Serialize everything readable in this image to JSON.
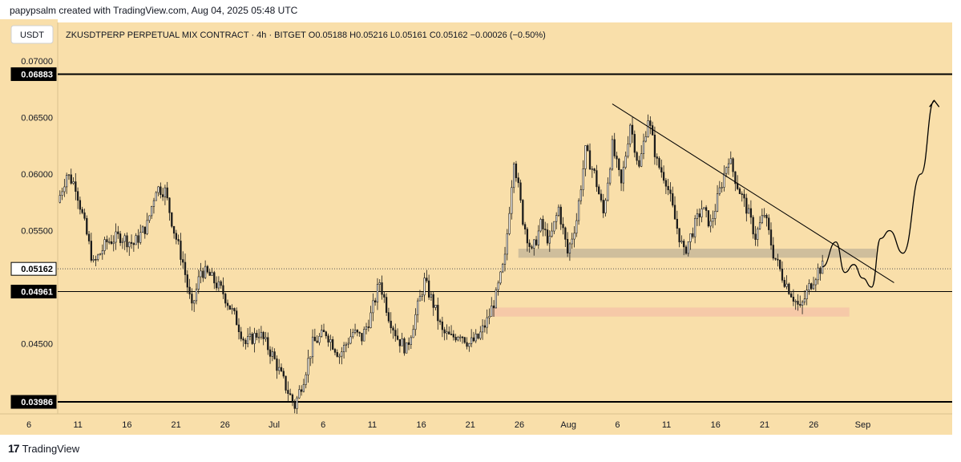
{
  "header": {
    "created_text": "papypsalm created with TradingView.com, Aug 04, 2025 05:48 UTC"
  },
  "footer": {
    "brand": "TradingView",
    "logo_glyph": "17"
  },
  "colors": {
    "chart_bg": "#f9dfaa",
    "candle": "#1a1a1a",
    "grey_zone": "#c8b89a",
    "pink_zone": "#f6c6a8",
    "line": "#000000"
  },
  "chart_data": {
    "type": "candlestick",
    "currency_box": "USDT",
    "legend_text": "ZKUSDTPERP PERPETUAL MIX CONTRACT · 4h · BITGET  O0.05188  H0.05216  L0.05161  C0.05162  −0.00026 (−0.50%)",
    "ylim": [
      0.0388,
      0.0734
    ],
    "y_ticks": [
      "0.07000",
      "0.06500",
      "0.06000",
      "0.05500",
      "0.04500"
    ],
    "x_ticks": [
      "6",
      "11",
      "16",
      "21",
      "26",
      "Jul",
      "6",
      "11",
      "16",
      "21",
      "26",
      "Aug",
      "6",
      "11",
      "16",
      "21",
      "26",
      "Sep"
    ],
    "horizontal_levels": [
      {
        "label": "0.06883",
        "value": 0.06883,
        "style": "thick"
      },
      {
        "label": "0.05162",
        "value": 0.05162,
        "style": "dotted"
      },
      {
        "label": "0.04961",
        "value": 0.04961,
        "style": "thin"
      },
      {
        "label": "0.03986",
        "value": 0.03986,
        "style": "thick"
      }
    ],
    "price_path": [
      [
        0,
        0.0575
      ],
      [
        2,
        0.06
      ],
      [
        4,
        0.059
      ],
      [
        6,
        0.0555
      ],
      [
        8,
        0.052
      ],
      [
        11,
        0.054
      ],
      [
        14,
        0.0545
      ],
      [
        17,
        0.0538
      ],
      [
        20,
        0.0555
      ],
      [
        22,
        0.0588
      ],
      [
        24,
        0.0585
      ],
      [
        26,
        0.055
      ],
      [
        28,
        0.0522
      ],
      [
        30,
        0.048
      ],
      [
        32,
        0.0515
      ],
      [
        34,
        0.051
      ],
      [
        37,
        0.0495
      ],
      [
        40,
        0.047
      ],
      [
        42,
        0.045
      ],
      [
        45,
        0.046
      ],
      [
        48,
        0.044
      ],
      [
        51,
        0.0412
      ],
      [
        53,
        0.0395
      ],
      [
        55,
        0.042
      ],
      [
        57,
        0.045
      ],
      [
        60,
        0.046
      ],
      [
        63,
        0.044
      ],
      [
        66,
        0.046
      ],
      [
        68,
        0.0455
      ],
      [
        70,
        0.0475
      ],
      [
        72,
        0.0505
      ],
      [
        74,
        0.0475
      ],
      [
        76,
        0.0455
      ],
      [
        78,
        0.0445
      ],
      [
        80,
        0.0475
      ],
      [
        82,
        0.0505
      ],
      [
        84,
        0.0485
      ],
      [
        86,
        0.046
      ],
      [
        88,
        0.0455
      ],
      [
        90,
        0.046
      ],
      [
        92,
        0.045
      ],
      [
        94,
        0.0455
      ],
      [
        96,
        0.047
      ],
      [
        98,
        0.0492
      ],
      [
        100,
        0.0525
      ],
      [
        102,
        0.0615
      ],
      [
        104,
        0.056
      ],
      [
        106,
        0.053
      ],
      [
        108,
        0.0555
      ],
      [
        110,
        0.054
      ],
      [
        112,
        0.057
      ],
      [
        114,
        0.053
      ],
      [
        116,
        0.056
      ],
      [
        118,
        0.062
      ],
      [
        120,
        0.06
      ],
      [
        122,
        0.0565
      ],
      [
        124,
        0.0625
      ],
      [
        126,
        0.059
      ],
      [
        128,
        0.0645
      ],
      [
        130,
        0.0605
      ],
      [
        132,
        0.065
      ],
      [
        134,
        0.061
      ],
      [
        136,
        0.0595
      ],
      [
        138,
        0.056
      ],
      [
        140,
        0.053
      ],
      [
        142,
        0.055
      ],
      [
        144,
        0.057
      ],
      [
        146,
        0.0555
      ],
      [
        148,
        0.0585
      ],
      [
        150,
        0.0615
      ],
      [
        152,
        0.059
      ],
      [
        154,
        0.057
      ],
      [
        156,
        0.0545
      ],
      [
        158,
        0.0565
      ],
      [
        160,
        0.053
      ],
      [
        162,
        0.051
      ],
      [
        164,
        0.0495
      ],
      [
        166,
        0.048
      ],
      [
        168,
        0.05
      ],
      [
        170,
        0.0515
      ],
      [
        171,
        0.0518
      ]
    ],
    "projection_path": [
      [
        171,
        0.0518
      ],
      [
        174,
        0.054
      ],
      [
        176,
        0.0513
      ],
      [
        178,
        0.052
      ],
      [
        180,
        0.0508
      ],
      [
        182,
        0.05
      ],
      [
        184,
        0.0543
      ],
      [
        186,
        0.055
      ],
      [
        189,
        0.053
      ],
      [
        193,
        0.06
      ],
      [
        196,
        0.0665
      ]
    ],
    "trendline": [
      [
        124,
        0.0662
      ],
      [
        183,
        0.0514
      ]
    ],
    "zones": [
      {
        "kind": "resistance",
        "x0": 103,
        "x1": 183,
        "y0": 0.0526,
        "y1": 0.0534
      },
      {
        "kind": "support",
        "x0": 97,
        "x1": 177,
        "y0": 0.0474,
        "y1": 0.0482
      }
    ],
    "x_range": [
      0,
      200
    ]
  }
}
